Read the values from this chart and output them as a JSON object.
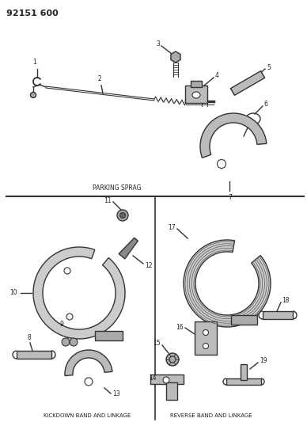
{
  "title": "92151 600",
  "parking_sprag_label": "PARKING SPRAG",
  "kickdown_label": "KICKDOWN BAND AND LINKAGE",
  "reverse_label": "REVERSE BAND AND LINKAGE",
  "bg_color": "#ffffff",
  "line_color": "#333333",
  "fill_color": "#cccccc",
  "fig_width": 3.88,
  "fig_height": 5.33,
  "dpi": 100
}
